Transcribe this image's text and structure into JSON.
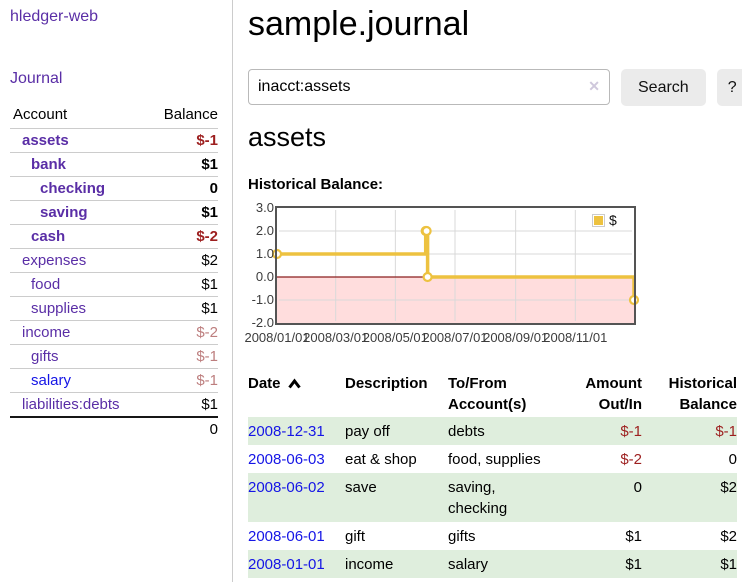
{
  "app": {
    "title": "hledger-web"
  },
  "sidebar": {
    "journal_link": "Journal",
    "accounts": {
      "headers": [
        "Account",
        "Balance"
      ],
      "rows": [
        {
          "account": "assets",
          "depth": 1,
          "bold": true,
          "balance": "$-1",
          "tone": "neg"
        },
        {
          "account": "bank",
          "depth": 2,
          "bold": true,
          "balance": "$1",
          "tone": ""
        },
        {
          "account": "checking",
          "depth": 3,
          "bold": true,
          "balance": "0",
          "tone": ""
        },
        {
          "account": "saving",
          "depth": 3,
          "bold": true,
          "balance": "$1",
          "tone": ""
        },
        {
          "account": "cash",
          "depth": 2,
          "bold": true,
          "balance": "$-2",
          "tone": "neg"
        },
        {
          "account": "expenses",
          "depth": 1,
          "bold": false,
          "balance": "$2",
          "tone": ""
        },
        {
          "account": "food",
          "depth": 2,
          "bold": false,
          "balance": "$1",
          "tone": ""
        },
        {
          "account": "supplies",
          "depth": 2,
          "bold": false,
          "balance": "$1",
          "tone": ""
        },
        {
          "account": "income",
          "depth": 1,
          "bold": false,
          "balance": "$-2",
          "tone": "negmuted"
        },
        {
          "account": "gifts",
          "depth": 2,
          "bold": false,
          "balance": "$-1",
          "tone": "negmuted"
        },
        {
          "account": "salary",
          "depth": 2,
          "bold": false,
          "balance": "$-1",
          "tone": "negmuted",
          "link": "blue"
        },
        {
          "account": "liabilities:debts",
          "depth": 1,
          "bold": false,
          "balance": "$1",
          "tone": ""
        }
      ],
      "total": "0"
    }
  },
  "main": {
    "title": "sample.journal",
    "search": {
      "value": "inacct:assets",
      "clear_icon": "✕",
      "button_label": "Search",
      "help_label": "?"
    },
    "account_heading": "assets",
    "chart_label": "Historical Balance:"
  },
  "chart_data": {
    "type": "line",
    "step": true,
    "title": "Historical Balance:",
    "xlabel": "",
    "ylabel": "",
    "xlim": [
      "2008-01-01",
      "2008-12-31"
    ],
    "ylim": [
      -2,
      3
    ],
    "xticks": [
      "2008/01/01",
      "2008/03/01",
      "2008/05/01",
      "2008/07/01",
      "2008/09/01",
      "2008/11/01"
    ],
    "yticks": [
      "3.0",
      "2.0",
      "1.0",
      "0.0",
      "-1.0",
      "-2.0"
    ],
    "grid": true,
    "legend_position": "top-right",
    "negative_region_color": "#ffdddd",
    "zero_line_color": "#8b1e1e",
    "series": [
      {
        "name": "$",
        "color": "#edc240",
        "x": [
          "2008-01-01",
          "2008-06-01",
          "2008-06-02",
          "2008-06-03",
          "2008-12-31"
        ],
        "y": [
          1,
          2,
          2,
          0,
          -1
        ]
      }
    ]
  },
  "register": {
    "headers": [
      "Date",
      "Description",
      "To/From Account(s)",
      "Amount Out/In",
      "Historical Balance"
    ],
    "sort": {
      "column": "Date",
      "direction": "ascending"
    },
    "rows": [
      {
        "date": "2008-12-31",
        "description": "pay off",
        "accounts": "debts",
        "amount": "$-1",
        "balance": "$-1"
      },
      {
        "date": "2008-06-03",
        "description": "eat & shop",
        "accounts": "food, supplies",
        "amount": "$-2",
        "balance": "0"
      },
      {
        "date": "2008-06-02",
        "description": "save",
        "accounts": "saving,\nchecking",
        "amount": "0",
        "balance": "$2"
      },
      {
        "date": "2008-06-01",
        "description": "gift",
        "accounts": "gifts",
        "amount": "$1",
        "balance": "$2"
      },
      {
        "date": "2008-01-01",
        "description": "income",
        "accounts": "salary",
        "amount": "$1",
        "balance": "$1"
      }
    ]
  },
  "colors": {
    "link_purple": "#5a2ea6",
    "link_blue": "#1515e6",
    "negative": "#9d1f1f",
    "negative_muted": "#bd7e7e",
    "row_stripe_green": "#dfeedd",
    "series_gold": "#edc240",
    "chart_negative_fill": "#ffdddd",
    "chart_zero_line": "#8b1e1e"
  }
}
